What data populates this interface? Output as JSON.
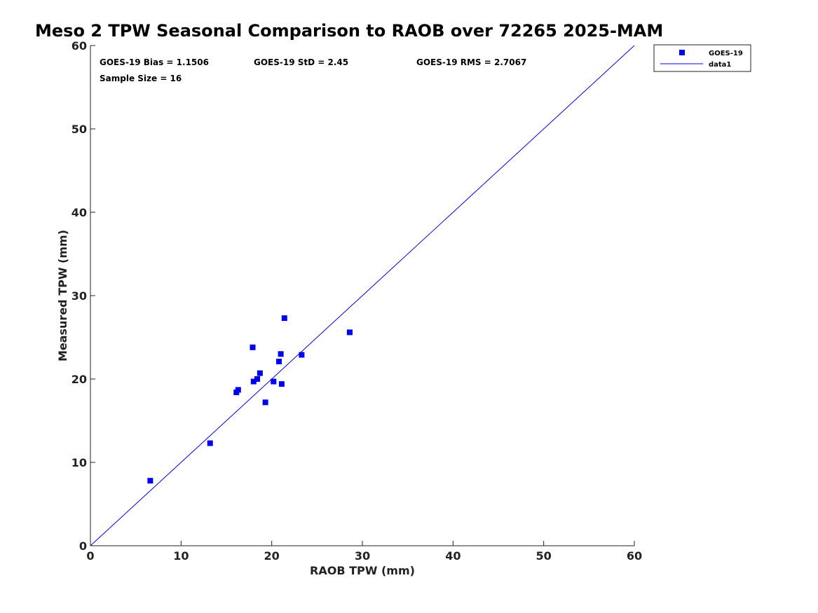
{
  "chart_data": {
    "type": "scatter",
    "title": "Meso 2 TPW Seasonal Comparison to RAOB over 72265 2025-MAM",
    "xlabel": "RAOB TPW (mm)",
    "ylabel": "Measured TPW (mm)",
    "xlim": [
      0,
      60
    ],
    "ylim": [
      0,
      60
    ],
    "xticks": [
      "0",
      "10",
      "20",
      "30",
      "40",
      "50",
      "60"
    ],
    "yticks": [
      "0",
      "10",
      "20",
      "30",
      "40",
      "50",
      "60"
    ],
    "grid": false,
    "legend_position": "outside top-right",
    "stats": {
      "bias": "GOES-19 Bias = 1.1506",
      "std": "GOES-19 StD = 2.45",
      "rms": "GOES-19 RMS = 2.7067",
      "sample_size": "Sample Size = 16"
    },
    "series": [
      {
        "name": "GOES-19",
        "kind": "scatter",
        "marker": "square",
        "color": "#0000ee",
        "points": [
          [
            6.6,
            7.8
          ],
          [
            13.2,
            12.3
          ],
          [
            16.1,
            18.4
          ],
          [
            16.3,
            18.7
          ],
          [
            17.9,
            23.8
          ],
          [
            18.0,
            19.7
          ],
          [
            18.4,
            20.0
          ],
          [
            18.7,
            20.7
          ],
          [
            19.3,
            17.2
          ],
          [
            20.2,
            19.7
          ],
          [
            20.8,
            22.1
          ],
          [
            21.0,
            23.0
          ],
          [
            21.1,
            19.4
          ],
          [
            21.4,
            27.3
          ],
          [
            23.3,
            22.9
          ],
          [
            28.6,
            25.6
          ]
        ]
      },
      {
        "name": "data1",
        "kind": "line",
        "color": "#0000ee",
        "points": [
          [
            0,
            0
          ],
          [
            60,
            60
          ]
        ]
      }
    ]
  }
}
